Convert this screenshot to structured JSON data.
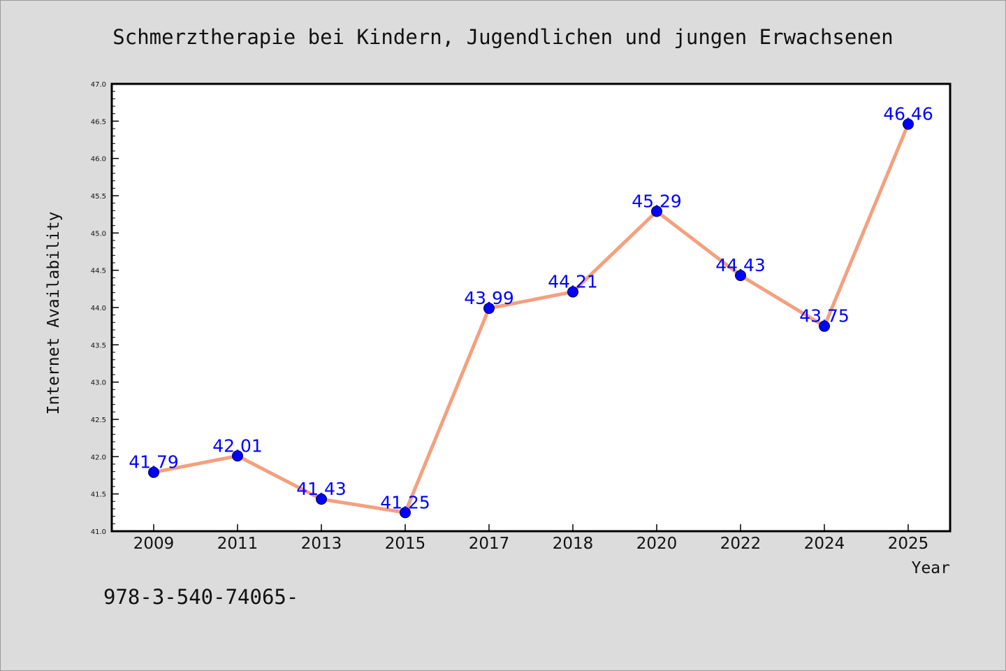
{
  "chart_data": {
    "type": "line",
    "title": "Schmerztherapie bei Kindern, Jugendlichen und jungen Erwachsenen",
    "xlabel": "Year",
    "ylabel": "Internet Availability",
    "categories": [
      "2009",
      "2011",
      "2013",
      "2015",
      "2017",
      "2018",
      "2020",
      "2022",
      "2024",
      "2025"
    ],
    "values": [
      41.79,
      42.01,
      41.43,
      41.25,
      43.99,
      44.21,
      45.29,
      44.43,
      43.75,
      46.46
    ],
    "data_labels": [
      "41.79",
      "42.01",
      "41.43",
      "41.25",
      "43.99",
      "44.21",
      "45.29",
      "44.43",
      "43.75",
      "46.46"
    ],
    "ylim": [
      41.0,
      47.0
    ],
    "yticks": [
      "41.0",
      "41.5",
      "42.0",
      "42.5",
      "43.0",
      "43.5",
      "44.0",
      "44.5",
      "45.0",
      "45.5",
      "46.0",
      "46.5",
      "47.0"
    ],
    "grid": false,
    "colors": {
      "line": "#f4a07f",
      "marker": "#0000ff",
      "marker_edge": "#000040",
      "data_label": "#0000ff",
      "plot_background": "#ffffff",
      "figure_background": "#dcdcdc"
    }
  },
  "footer": {
    "text": "978-3-540-74065-"
  }
}
